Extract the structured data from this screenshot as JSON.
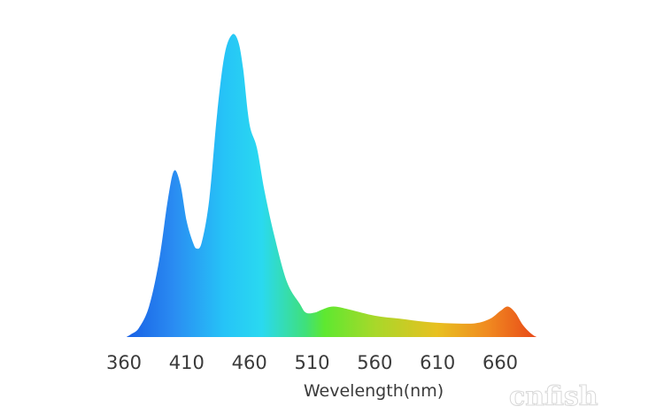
{
  "chart_data": {
    "type": "area",
    "title": "",
    "xlabel": "Wevelength(nm)",
    "ylabel": "",
    "xticks": [
      360,
      410,
      460,
      510,
      560,
      610,
      660
    ],
    "xlim": [
      360,
      695
    ],
    "ylim": [
      0,
      100
    ],
    "grid": false,
    "fill": "spectral color gradient",
    "gradient_colors": [
      "#1a63e6",
      "#2a8cf2",
      "#26c4f7",
      "#2ad9f0",
      "#3fe07a",
      "#5ee830",
      "#a8d82a",
      "#e8c020",
      "#f08a20",
      "#e84818"
    ],
    "x": [
      362,
      366,
      372,
      380,
      388,
      395,
      400,
      405,
      410,
      415,
      418,
      422,
      428,
      434,
      440,
      446,
      451,
      455,
      460,
      466,
      472,
      480,
      490,
      500,
      505,
      512,
      518,
      527,
      540,
      560,
      580,
      600,
      620,
      640,
      652,
      660,
      666,
      672,
      678,
      685,
      689
    ],
    "y": [
      0,
      1,
      3,
      10,
      25,
      45,
      54.5,
      50,
      38,
      31,
      29,
      31,
      45,
      72,
      92,
      99,
      97,
      88,
      70,
      62,
      48,
      33,
      18,
      11,
      8,
      8,
      9,
      10,
      9,
      7,
      6,
      5,
      4.5,
      4.5,
      6,
      8.5,
      10,
      8,
      4,
      1,
      0
    ]
  },
  "watermark": "cnfish.com"
}
